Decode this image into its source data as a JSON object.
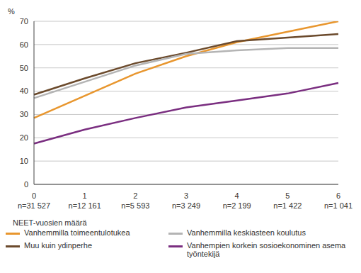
{
  "chart_data": {
    "type": "line",
    "y_label": "%",
    "x_label": "NEET-vuosien määrä",
    "categories": [
      "0\nn=31 527",
      "1\nn=12 161",
      "2\nn=5 593",
      "3\nn=3 249",
      "4\nn=2 199",
      "5\nn=1 422",
      "6\nn=1 041"
    ],
    "series": [
      {
        "name": "Vanhemmilla toimeentulotukea",
        "color": "#e8962e",
        "values": [
          28.5,
          38,
          47.5,
          55,
          61,
          65.5,
          70
        ]
      },
      {
        "name": "Muu kuin ydinperhe",
        "color": "#6b4a2c",
        "values": [
          38.5,
          45.5,
          52,
          56.5,
          61.5,
          63,
          64.5
        ]
      },
      {
        "name": "Vanhemmilla keskiasteen koulutus",
        "color": "#b4b4b4",
        "values": [
          37,
          44,
          51,
          56,
          57.5,
          58.5,
          58.5
        ]
      },
      {
        "name": "Vanhempien korkein sosioekonominen asema työntekijä",
        "color": "#7a2e80",
        "values": [
          17.5,
          23.5,
          28.5,
          33,
          36,
          39,
          43.5
        ]
      }
    ],
    "ylim": [
      0,
      70
    ],
    "yticks": [
      0,
      10,
      20,
      30,
      40,
      50,
      60,
      70
    ],
    "grid": true,
    "legend": "bottom"
  }
}
